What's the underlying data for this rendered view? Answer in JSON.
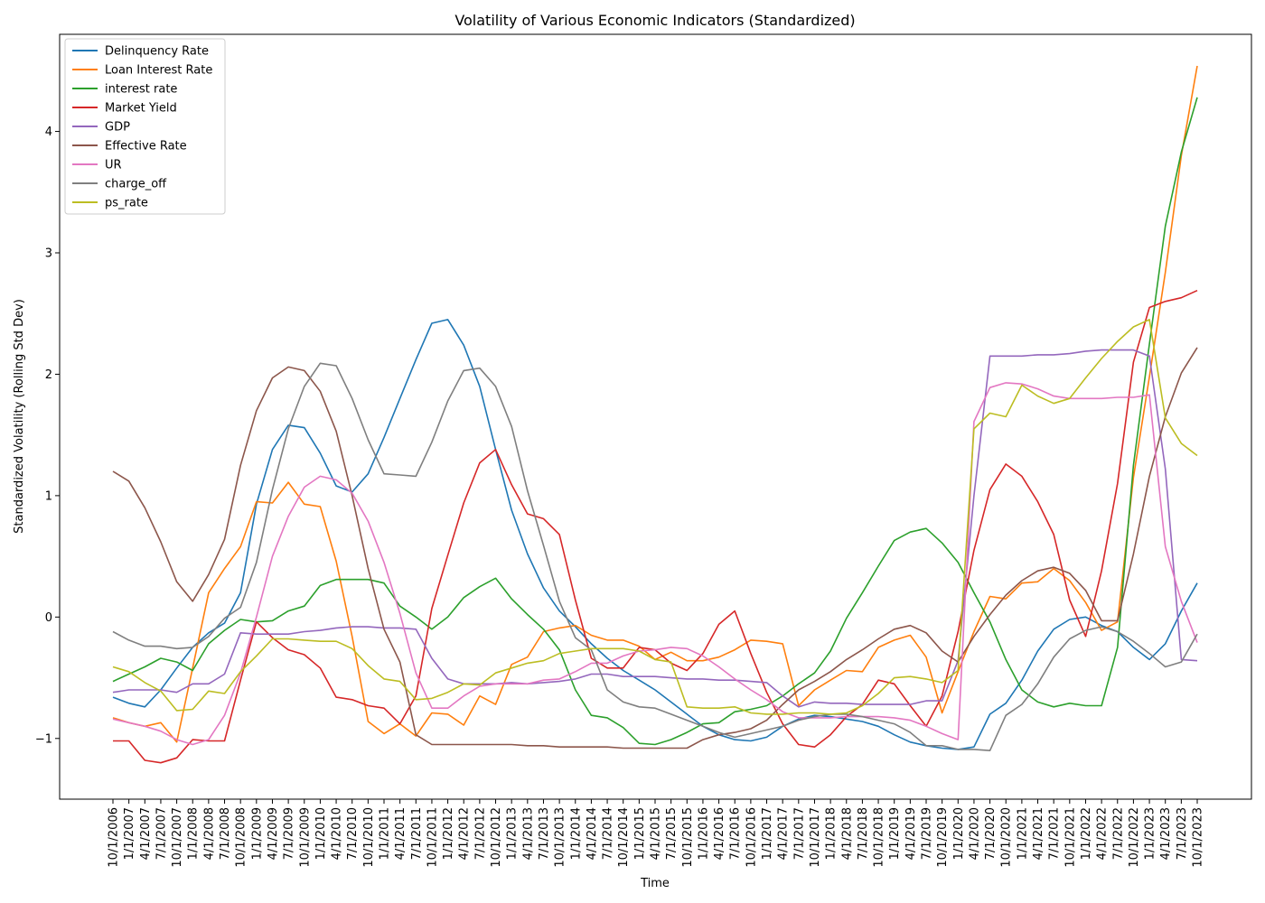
{
  "chart_data": {
    "type": "line",
    "title": "Volatility of Various Economic Indicators (Standardized)",
    "xlabel": "Time",
    "ylabel": "Standardized Volatility (Rolling Std Dev)",
    "ylim": [
      -1.5,
      4.8
    ],
    "yticks": [
      -1,
      0,
      1,
      2,
      3,
      4
    ],
    "grid": false,
    "legend_position": "top-left",
    "x": [
      "10/1/2006",
      "1/1/2007",
      "4/1/2007",
      "7/1/2007",
      "10/1/2007",
      "1/1/2008",
      "4/1/2008",
      "7/1/2008",
      "10/1/2008",
      "1/1/2009",
      "4/1/2009",
      "7/1/2009",
      "10/1/2009",
      "1/1/2010",
      "4/1/2010",
      "7/1/2010",
      "10/1/2010",
      "1/1/2011",
      "4/1/2011",
      "7/1/2011",
      "10/1/2011",
      "1/1/2012",
      "4/1/2012",
      "7/1/2012",
      "10/1/2012",
      "1/1/2013",
      "4/1/2013",
      "7/1/2013",
      "10/1/2013",
      "1/1/2014",
      "4/1/2014",
      "7/1/2014",
      "10/1/2014",
      "1/1/2015",
      "4/1/2015",
      "7/1/2015",
      "10/1/2015",
      "1/1/2016",
      "4/1/2016",
      "7/1/2016",
      "10/1/2016",
      "1/1/2017",
      "4/1/2017",
      "7/1/2017",
      "10/1/2017",
      "1/1/2018",
      "4/1/2018",
      "7/1/2018",
      "10/1/2018",
      "1/1/2019",
      "4/1/2019",
      "7/1/2019",
      "10/1/2019",
      "1/1/2020",
      "4/1/2020",
      "7/1/2020",
      "10/1/2020",
      "1/1/2021",
      "4/1/2021",
      "7/1/2021",
      "10/1/2021",
      "1/1/2022",
      "4/1/2022",
      "7/1/2022",
      "10/1/2022",
      "1/1/2023",
      "4/1/2023",
      "7/1/2023",
      "10/1/2023"
    ],
    "series": [
      {
        "name": "Delinquency Rate",
        "color": "#1f77b4",
        "values": [
          -0.66,
          -0.71,
          -0.74,
          -0.6,
          -0.42,
          -0.25,
          -0.13,
          -0.05,
          0.2,
          0.93,
          1.38,
          1.58,
          1.56,
          1.35,
          1.08,
          1.03,
          1.18,
          1.48,
          1.8,
          2.12,
          2.42,
          2.45,
          2.24,
          1.9,
          1.38,
          0.88,
          0.52,
          0.24,
          0.05,
          -0.08,
          -0.22,
          -0.34,
          -0.44,
          -0.52,
          -0.6,
          -0.7,
          -0.8,
          -0.9,
          -0.97,
          -1.01,
          -1.02,
          -0.99,
          -0.9,
          -0.84,
          -0.81,
          -0.82,
          -0.84,
          -0.86,
          -0.9,
          -0.97,
          -1.03,
          -1.06,
          -1.08,
          -1.09,
          -1.07,
          -0.8,
          -0.71,
          -0.52,
          -0.28,
          -0.1,
          -0.02,
          0.0,
          -0.07,
          -0.12,
          -0.25,
          -0.35,
          -0.22,
          0.05,
          0.28
        ]
      },
      {
        "name": "Loan Interest Rate",
        "color": "#ff7f0e",
        "values": [
          -0.83,
          -0.87,
          -0.9,
          -0.87,
          -1.03,
          -0.42,
          0.2,
          0.4,
          0.58,
          0.95,
          0.94,
          1.11,
          0.93,
          0.91,
          0.46,
          -0.16,
          -0.86,
          -0.96,
          -0.88,
          -0.98,
          -0.79,
          -0.8,
          -0.89,
          -0.65,
          -0.72,
          -0.39,
          -0.33,
          -0.12,
          -0.09,
          -0.07,
          -0.15,
          -0.19,
          -0.19,
          -0.24,
          -0.35,
          -0.29,
          -0.36,
          -0.36,
          -0.33,
          -0.27,
          -0.19,
          -0.2,
          -0.22,
          -0.73,
          -0.6,
          -0.52,
          -0.44,
          -0.45,
          -0.25,
          -0.19,
          -0.15,
          -0.33,
          -0.79,
          -0.45,
          -0.12,
          0.17,
          0.15,
          0.28,
          0.29,
          0.4,
          0.3,
          0.12,
          -0.11,
          -0.04,
          1.15,
          1.98,
          2.84,
          3.8,
          4.54
        ]
      },
      {
        "name": "interest rate",
        "color": "#2ca02c",
        "values": [
          -0.53,
          -0.47,
          -0.41,
          -0.34,
          -0.37,
          -0.44,
          -0.22,
          -0.11,
          -0.02,
          -0.04,
          -0.03,
          0.05,
          0.09,
          0.26,
          0.31,
          0.31,
          0.31,
          0.28,
          0.09,
          0.0,
          -0.1,
          0.0,
          0.16,
          0.25,
          0.32,
          0.15,
          0.02,
          -0.1,
          -0.27,
          -0.6,
          -0.81,
          -0.83,
          -0.91,
          -1.04,
          -1.05,
          -1.01,
          -0.95,
          -0.88,
          -0.87,
          -0.78,
          -0.76,
          -0.73,
          -0.65,
          -0.55,
          -0.46,
          -0.28,
          -0.01,
          0.2,
          0.42,
          0.63,
          0.7,
          0.73,
          0.61,
          0.45,
          0.2,
          -0.04,
          -0.35,
          -0.6,
          -0.7,
          -0.74,
          -0.71,
          -0.73,
          -0.73,
          -0.25,
          1.25,
          2.25,
          3.22,
          3.83,
          4.28
        ]
      },
      {
        "name": "Market Yield",
        "color": "#d62728",
        "values": [
          -1.02,
          -1.02,
          -1.18,
          -1.2,
          -1.16,
          -1.01,
          -1.02,
          -1.02,
          -0.52,
          -0.04,
          -0.17,
          -0.27,
          -0.31,
          -0.42,
          -0.66,
          -0.68,
          -0.73,
          -0.75,
          -0.88,
          -0.65,
          0.07,
          0.51,
          0.94,
          1.27,
          1.38,
          1.09,
          0.85,
          0.81,
          0.68,
          0.14,
          -0.34,
          -0.42,
          -0.42,
          -0.25,
          -0.27,
          -0.38,
          -0.44,
          -0.3,
          -0.06,
          0.05,
          -0.3,
          -0.62,
          -0.88,
          -1.05,
          -1.07,
          -0.97,
          -0.82,
          -0.72,
          -0.52,
          -0.55,
          -0.73,
          -0.9,
          -0.65,
          -0.12,
          0.55,
          1.05,
          1.26,
          1.16,
          0.95,
          0.68,
          0.14,
          -0.16,
          0.38,
          1.1,
          2.1,
          2.55,
          2.6,
          2.63,
          2.69
        ]
      },
      {
        "name": "GDP",
        "color": "#9467bd",
        "values": [
          -0.62,
          -0.6,
          -0.6,
          -0.6,
          -0.62,
          -0.55,
          -0.55,
          -0.47,
          -0.13,
          -0.14,
          -0.14,
          -0.14,
          -0.12,
          -0.11,
          -0.09,
          -0.08,
          -0.08,
          -0.09,
          -0.09,
          -0.1,
          -0.34,
          -0.51,
          -0.55,
          -0.55,
          -0.55,
          -0.54,
          -0.55,
          -0.54,
          -0.53,
          -0.51,
          -0.47,
          -0.47,
          -0.49,
          -0.49,
          -0.49,
          -0.5,
          -0.51,
          -0.51,
          -0.52,
          -0.52,
          -0.53,
          -0.54,
          -0.65,
          -0.74,
          -0.7,
          -0.71,
          -0.71,
          -0.72,
          -0.72,
          -0.72,
          -0.72,
          -0.69,
          -0.69,
          -0.36,
          1.0,
          2.15,
          2.15,
          2.15,
          2.16,
          2.16,
          2.17,
          2.19,
          2.2,
          2.2,
          2.2,
          2.15,
          1.22,
          -0.35,
          -0.36
        ]
      },
      {
        "name": "Effective Rate",
        "color": "#8c564b",
        "values": [
          1.2,
          1.12,
          0.9,
          0.62,
          0.29,
          0.13,
          0.35,
          0.64,
          1.25,
          1.7,
          1.97,
          2.06,
          2.03,
          1.86,
          1.53,
          1.0,
          0.4,
          -0.1,
          -0.37,
          -0.97,
          -1.05,
          -1.05,
          -1.05,
          -1.05,
          -1.05,
          -1.05,
          -1.06,
          -1.06,
          -1.07,
          -1.07,
          -1.07,
          -1.07,
          -1.08,
          -1.08,
          -1.08,
          -1.08,
          -1.08,
          -1.01,
          -0.97,
          -0.95,
          -0.92,
          -0.85,
          -0.72,
          -0.6,
          -0.53,
          -0.45,
          -0.35,
          -0.27,
          -0.18,
          -0.1,
          -0.07,
          -0.13,
          -0.28,
          -0.37,
          -0.16,
          0.02,
          0.18,
          0.3,
          0.38,
          0.41,
          0.36,
          0.22,
          -0.03,
          -0.03,
          0.52,
          1.16,
          1.65,
          2.01,
          2.22
        ]
      },
      {
        "name": "UR",
        "color": "#e377c2",
        "values": [
          -0.84,
          -0.87,
          -0.9,
          -0.94,
          -1.01,
          -1.05,
          -1.01,
          -0.81,
          -0.46,
          0.0,
          0.5,
          0.83,
          1.07,
          1.16,
          1.13,
          1.02,
          0.79,
          0.45,
          0.03,
          -0.46,
          -0.75,
          -0.75,
          -0.65,
          -0.57,
          -0.55,
          -0.55,
          -0.55,
          -0.52,
          -0.51,
          -0.45,
          -0.38,
          -0.38,
          -0.32,
          -0.28,
          -0.27,
          -0.25,
          -0.26,
          -0.32,
          -0.41,
          -0.51,
          -0.6,
          -0.68,
          -0.78,
          -0.83,
          -0.83,
          -0.83,
          -0.82,
          -0.82,
          -0.82,
          -0.83,
          -0.85,
          -0.9,
          -0.96,
          -1.01,
          1.61,
          1.89,
          1.93,
          1.92,
          1.88,
          1.82,
          1.8,
          1.8,
          1.8,
          1.81,
          1.81,
          1.83,
          0.58,
          0.13,
          -0.21
        ]
      },
      {
        "name": "charge_off",
        "color": "#7f7f7f",
        "values": [
          -0.12,
          -0.19,
          -0.24,
          -0.24,
          -0.26,
          -0.25,
          -0.16,
          -0.01,
          0.08,
          0.45,
          1.05,
          1.55,
          1.9,
          2.09,
          2.07,
          1.8,
          1.46,
          1.18,
          1.17,
          1.16,
          1.44,
          1.78,
          2.03,
          2.05,
          1.9,
          1.57,
          1.04,
          0.59,
          0.13,
          -0.17,
          -0.27,
          -0.6,
          -0.7,
          -0.74,
          -0.75,
          -0.8,
          -0.85,
          -0.9,
          -0.95,
          -0.99,
          -0.96,
          -0.93,
          -0.9,
          -0.85,
          -0.82,
          -0.8,
          -0.8,
          -0.82,
          -0.85,
          -0.88,
          -0.95,
          -1.06,
          -1.06,
          -1.09,
          -1.09,
          -1.1,
          -0.81,
          -0.72,
          -0.55,
          -0.33,
          -0.18,
          -0.11,
          -0.08,
          -0.12,
          -0.2,
          -0.3,
          -0.41,
          -0.37,
          -0.14
        ]
      },
      {
        "name": "ps_rate",
        "color": "#bcbd22",
        "values": [
          -0.41,
          -0.45,
          -0.54,
          -0.61,
          -0.77,
          -0.76,
          -0.61,
          -0.63,
          -0.45,
          -0.32,
          -0.18,
          -0.18,
          -0.19,
          -0.2,
          -0.2,
          -0.26,
          -0.4,
          -0.51,
          -0.53,
          -0.68,
          -0.67,
          -0.62,
          -0.55,
          -0.56,
          -0.46,
          -0.42,
          -0.38,
          -0.36,
          -0.3,
          -0.28,
          -0.26,
          -0.26,
          -0.26,
          -0.28,
          -0.35,
          -0.37,
          -0.74,
          -0.75,
          -0.75,
          -0.74,
          -0.79,
          -0.8,
          -0.8,
          -0.79,
          -0.79,
          -0.8,
          -0.79,
          -0.73,
          -0.63,
          -0.5,
          -0.49,
          -0.51,
          -0.54,
          -0.44,
          1.55,
          1.68,
          1.65,
          1.91,
          1.82,
          1.76,
          1.8,
          1.97,
          2.13,
          2.27,
          2.39,
          2.45,
          1.64,
          1.43,
          1.33
        ]
      }
    ]
  }
}
